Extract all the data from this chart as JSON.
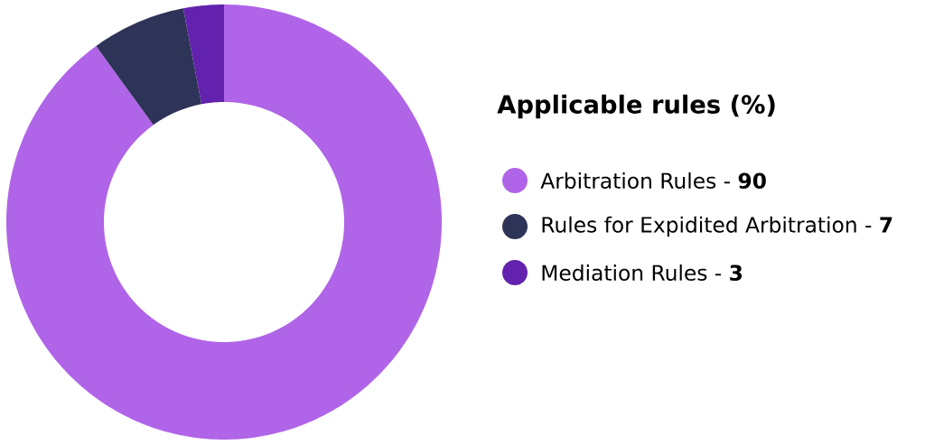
{
  "chart_data": {
    "type": "donut",
    "legend_title": "Applicable rules (%)",
    "categories": [
      "Arbitration Rules - **90**",
      "Rules for Expidited Arbitration - **7**",
      "Mediation Rules - **3**"
    ],
    "values": [
      90,
      7,
      3
    ],
    "colors": [
      "#b064e8",
      "#2e3358",
      "#6222ad"
    ],
    "legend": "right"
  }
}
